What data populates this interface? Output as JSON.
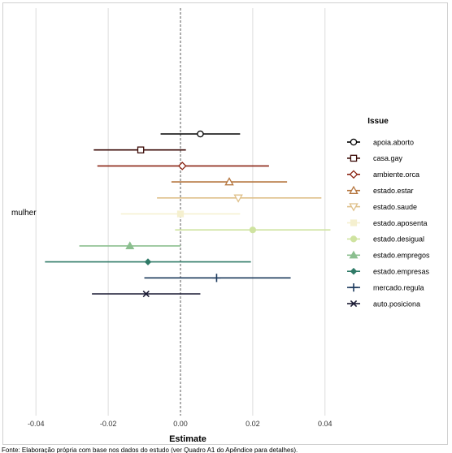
{
  "chart_data": {
    "type": "coefficient-plot",
    "xlabel": "Estimate",
    "ylabel_category": "mulher",
    "xlim": [
      -0.045,
      0.045
    ],
    "xticks": [
      -0.04,
      -0.02,
      0.0,
      0.02,
      0.04
    ],
    "xtick_labels": [
      "-0.04",
      "-0.02",
      "0.00",
      "0.02",
      "0.04"
    ],
    "zero_line": "dashed",
    "grid": "vertical major gridlines",
    "legend": {
      "title": "Issue",
      "position": "right"
    },
    "series": [
      {
        "name": "apoia.aborto",
        "estimate": 0.0055,
        "low": -0.0055,
        "high": 0.0165,
        "color": "#000000",
        "marker": "circle-open"
      },
      {
        "name": "casa.gay",
        "estimate": -0.011,
        "low": -0.024,
        "high": 0.0015,
        "color": "#3b0a06",
        "marker": "square-open"
      },
      {
        "name": "ambiente.orca",
        "estimate": 0.0005,
        "low": -0.023,
        "high": 0.0245,
        "color": "#8a2312",
        "marker": "diamond-open"
      },
      {
        "name": "estado.estar",
        "estimate": 0.0135,
        "low": -0.0025,
        "high": 0.0295,
        "color": "#b5763f",
        "marker": "triangle-open"
      },
      {
        "name": "estado.saude",
        "estimate": 0.016,
        "low": -0.0065,
        "high": 0.039,
        "color": "#dfc08a",
        "marker": "triangle-down-open"
      },
      {
        "name": "estado.aposenta",
        "estimate": 0.0,
        "low": -0.0165,
        "high": 0.0165,
        "color": "#f5f0cf",
        "marker": "square"
      },
      {
        "name": "estado.desigual",
        "estimate": 0.02,
        "low": -0.0015,
        "high": 0.0415,
        "color": "#cfe3a0",
        "marker": "circle"
      },
      {
        "name": "estado.empregos",
        "estimate": -0.014,
        "low": -0.028,
        "high": 0.0,
        "color": "#8bbf8f",
        "marker": "triangle"
      },
      {
        "name": "estado.empresas",
        "estimate": -0.009,
        "low": -0.0375,
        "high": 0.0195,
        "color": "#2f7a67",
        "marker": "diamond"
      },
      {
        "name": "mercado.regula",
        "estimate": 0.01,
        "low": -0.01,
        "high": 0.0305,
        "color": "#1d3b5e",
        "marker": "plus"
      },
      {
        "name": "auto.posiciona",
        "estimate": -0.0095,
        "low": -0.0245,
        "high": 0.0055,
        "color": "#1a1a33",
        "marker": "cross"
      }
    ]
  },
  "footnote": {
    "text": "Fonte: Elaboração própria com base nos dados do estudo (ver Quadro A1 do Apêndice para detalhes)."
  }
}
